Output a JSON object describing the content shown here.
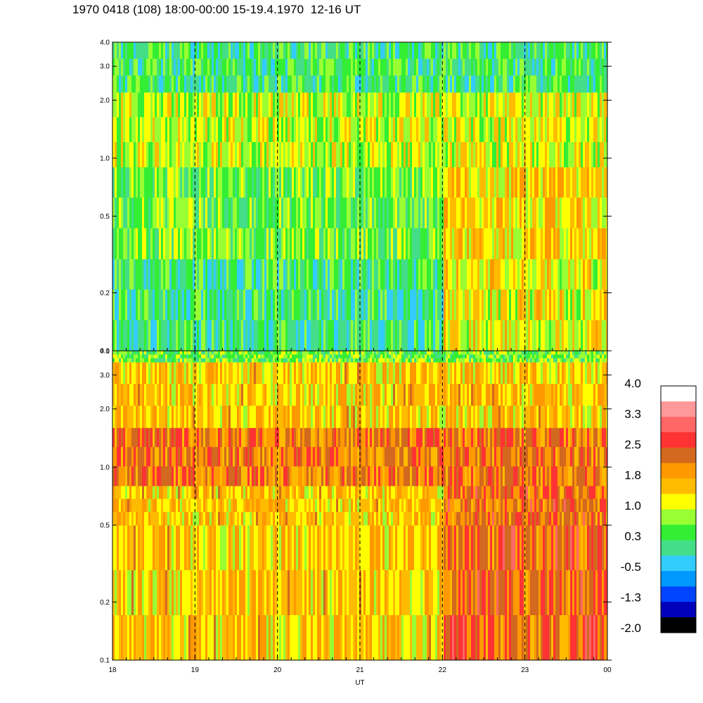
{
  "title": "1970 0418 (108) 18:00-00:00 15-19.4.1970  12-16 UT",
  "chart_data": [
    {
      "type": "heatmap",
      "panel": "top",
      "xlabel": "",
      "ylabel": "",
      "y_scale": "log",
      "ylim": [
        0.1,
        4.0
      ],
      "y_ticks": [
        "0.1",
        "0.2",
        "0.5",
        "1.0",
        "2.0",
        "3.0",
        "4.0"
      ],
      "xlim": [
        "18",
        "00"
      ],
      "dashed_hour_lines": [
        19,
        20,
        21,
        22,
        23
      ],
      "bands": [
        {
          "y_range": [
            0.1,
            0.3
          ],
          "typical_level_before_22": 0.2,
          "typical_level_after_22": 1.2
        },
        {
          "y_range": [
            0.3,
            0.9
          ],
          "typical_level_before_22": 0.6,
          "typical_level_after_22": 1.4
        },
        {
          "y_range": [
            0.9,
            2.2
          ],
          "typical_level_before_22": 1.0,
          "typical_level_after_22": 1.1
        },
        {
          "y_range": [
            2.2,
            4.0
          ],
          "typical_level_before_22": 0.3,
          "typical_level_after_22": 0.3
        }
      ]
    },
    {
      "type": "heatmap",
      "panel": "bottom",
      "xlabel": "UT",
      "ylabel": "",
      "y_scale": "log",
      "ylim": [
        0.1,
        4.0
      ],
      "y_ticks": [
        "0.1",
        "0.2",
        "0.5",
        "1.0",
        "2.0",
        "3.0",
        "4.0"
      ],
      "x_ticks": [
        "18",
        "19",
        "20",
        "21",
        "22",
        "23",
        "00"
      ],
      "xlim": [
        "18",
        "00"
      ],
      "dashed_hour_lines": [
        19,
        20,
        21,
        22,
        23
      ],
      "bands": [
        {
          "y_range": [
            0.1,
            0.5
          ],
          "typical_level_before_22": 1.5,
          "typical_level_after_22": 2.3
        },
        {
          "y_range": [
            0.5,
            0.8
          ],
          "typical_level_before_22": 1.5,
          "typical_level_after_22": 2.3
        },
        {
          "y_range": [
            0.8,
            1.6
          ],
          "typical_level_before_22": 2.1,
          "typical_level_after_22": 2.2
        },
        {
          "y_range": [
            1.6,
            3.5
          ],
          "typical_level_before_22": 1.5,
          "typical_level_after_22": 1.5
        },
        {
          "y_range": [
            3.5,
            4.0
          ],
          "typical_level_before_22": 0.6,
          "typical_level_after_22": 0.6
        }
      ]
    }
  ],
  "colorbar": {
    "labels": [
      "4.0",
      "3.3",
      "2.5",
      "1.8",
      "1.0",
      "0.3",
      "-0.5",
      "-1.3",
      "-2.0"
    ],
    "colors_top_to_bottom": [
      "#ffffff",
      "#ff9999",
      "#ff6666",
      "#ff3333",
      "#d2691e",
      "#ff9900",
      "#ffbb00",
      "#ffff00",
      "#99ff33",
      "#33ee33",
      "#44dd88",
      "#33ccff",
      "#0099ff",
      "#0044ff",
      "#0000bb",
      "#000000"
    ]
  }
}
